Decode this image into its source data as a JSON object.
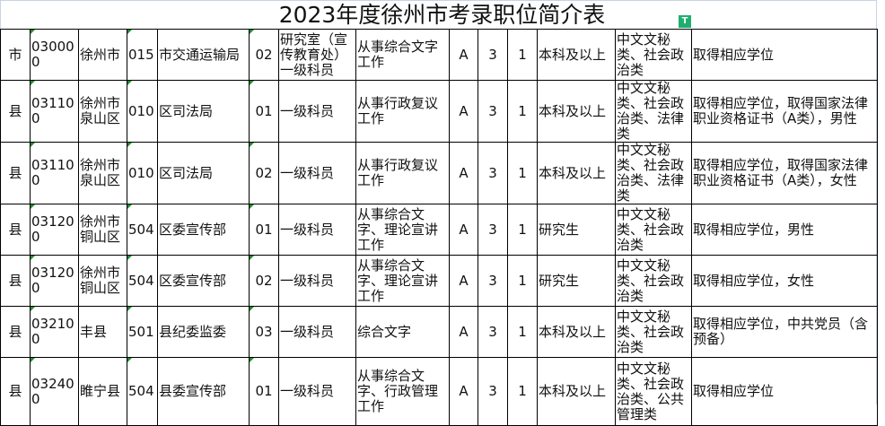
{
  "title": "2023年度徐州市考录职位简介表",
  "filter_icon": "filter-icon",
  "rows": [
    [
      "市",
      "030000",
      "徐州市",
      "015",
      "市交通运输局",
      "02",
      "研究室（宣传教育处）一级科员",
      "从事综合文字工作",
      "A",
      "3",
      "1",
      "本科及以上",
      "中文文秘类、社会政治类",
      "取得相应学位"
    ],
    [
      "县",
      "031100",
      "徐州市泉山区",
      "010",
      "区司法局",
      "01",
      "一级科员",
      "从事行政复议工作",
      "A",
      "3",
      "1",
      "本科及以上",
      "中文文秘类、社会政治类、法律类",
      "取得相应学位，取得国家法律职业资格证书（A类），男性"
    ],
    [
      "县",
      "031100",
      "徐州市泉山区",
      "010",
      "区司法局",
      "02",
      "一级科员",
      "从事行政复议工作",
      "A",
      "3",
      "1",
      "本科及以上",
      "中文文秘类、社会政治类、法律类",
      "取得相应学位，取得国家法律职业资格证书（A类），女性"
    ],
    [
      "县",
      "031200",
      "徐州市铜山区",
      "504",
      "区委宣传部",
      "01",
      "一级科员",
      "从事综合文字、理论宣讲工作",
      "A",
      "3",
      "1",
      "研究生",
      "中文文秘类、社会政治类",
      "取得相应学位，男性"
    ],
    [
      "县",
      "031200",
      "徐州市铜山区",
      "504",
      "区委宣传部",
      "02",
      "一级科员",
      "从事综合文字、理论宣讲工作",
      "A",
      "3",
      "1",
      "研究生",
      "中文文秘类、社会政治类",
      "取得相应学位，女性"
    ],
    [
      "县",
      "032100",
      "丰县",
      "501",
      "县纪委监委",
      "03",
      "一级科员",
      "综合文字",
      "A",
      "3",
      "1",
      "本科及以上",
      "中文文秘类、社会政治类",
      "取得相应学位，中共党员（含预备）"
    ],
    [
      "县",
      "032400",
      "睢宁县",
      "504",
      "县委宣传部",
      "01",
      "一级科员",
      "从事综合文字、行政管理工作",
      "A",
      "3",
      "1",
      "本科及以上",
      "中文文秘类、社会政治类、公共管理类",
      "取得相应学位"
    ]
  ]
}
